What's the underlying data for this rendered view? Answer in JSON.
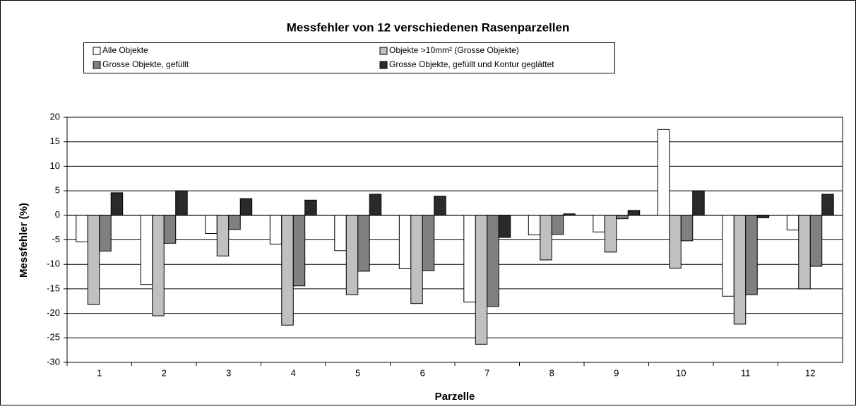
{
  "chart_data": {
    "type": "bar",
    "title": "Messfehler von 12 verschiedenen Rasenparzellen",
    "x_label": "Parzelle",
    "y_label": "Messfehler (%)",
    "categories": [
      "1",
      "2",
      "3",
      "4",
      "5",
      "6",
      "7",
      "8",
      "9",
      "10",
      "11",
      "12"
    ],
    "series": [
      {
        "name": "Alle Objekte",
        "color": "#ffffff",
        "values": [
          -5.4,
          -14.1,
          -3.7,
          -5.9,
          -7.2,
          -10.9,
          -17.7,
          -4.0,
          -3.4,
          17.5,
          -16.5,
          -3.0
        ]
      },
      {
        "name": "Objekte >10mm² (Grosse Objekte)",
        "color": "#c0c0c0",
        "values": [
          -18.2,
          -20.5,
          -8.3,
          -22.4,
          -16.2,
          -18.0,
          -26.3,
          -9.1,
          -7.5,
          -10.8,
          -22.2,
          -15.0
        ]
      },
      {
        "name": "Grosse Objekte, gefüllt",
        "color": "#808080",
        "values": [
          -7.3,
          -5.7,
          -2.9,
          -14.4,
          -11.4,
          -11.3,
          -18.6,
          -3.9,
          -0.7,
          -5.2,
          -16.2,
          -10.4
        ]
      },
      {
        "name": "Grosse Objekte, gefüllt und Kontur geglättet",
        "color": "#2a2a2a",
        "values": [
          4.6,
          5.0,
          3.4,
          3.1,
          4.3,
          3.9,
          -4.5,
          0.3,
          1.0,
          5.0,
          -0.5,
          4.3
        ]
      }
    ],
    "ylim": [
      -30,
      20
    ],
    "yticks": [
      -30,
      -25,
      -20,
      -15,
      -10,
      -5,
      0,
      5,
      10,
      15,
      20
    ],
    "grid": true
  }
}
